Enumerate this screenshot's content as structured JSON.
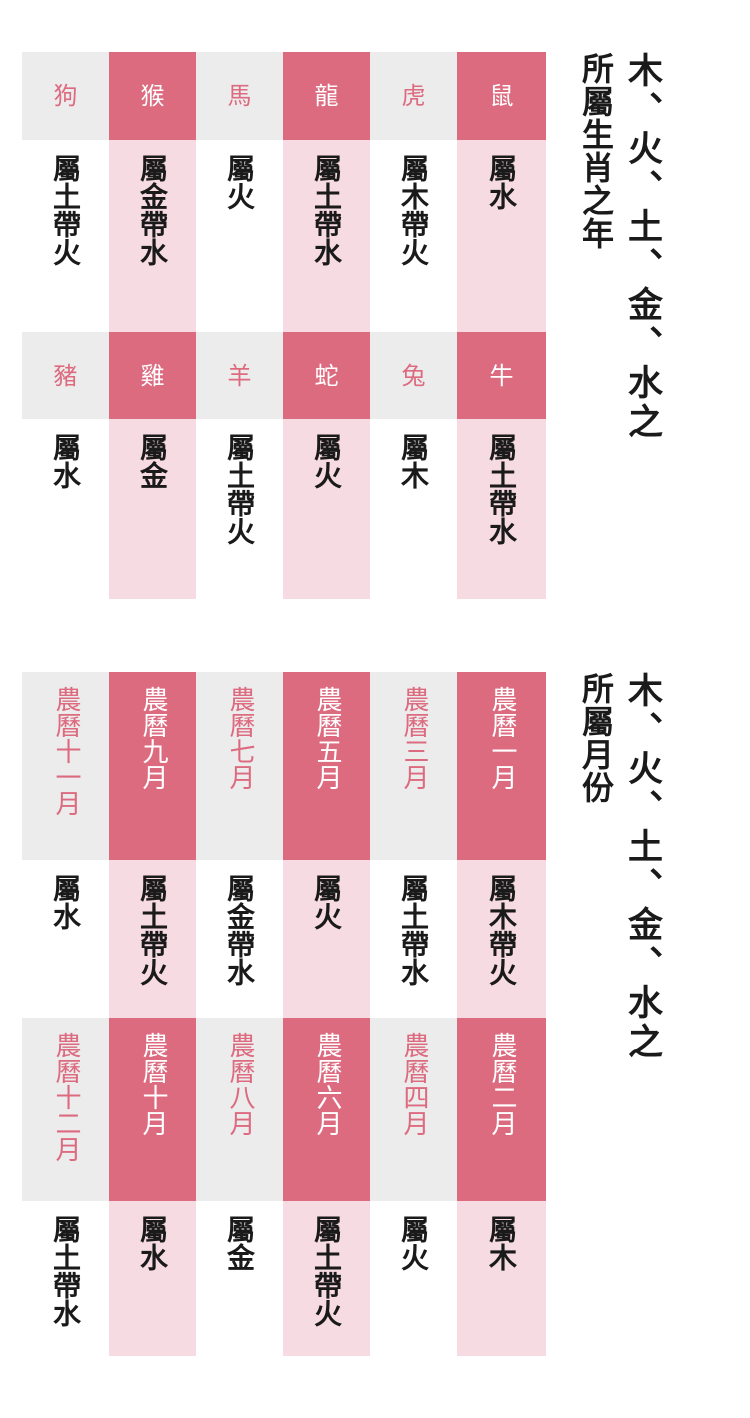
{
  "zodiac_section": {
    "title_main": "木、火、土、金、水之",
    "title_sub": "所屬生肖之年",
    "rows": [
      [
        {
          "head": "狗",
          "body": "屬土帶火"
        },
        {
          "head": "猴",
          "body": "屬金帶水"
        },
        {
          "head": "馬",
          "body": "屬火"
        },
        {
          "head": "龍",
          "body": "屬土帶水"
        },
        {
          "head": "虎",
          "body": "屬木帶火"
        },
        {
          "head": "鼠",
          "body": "屬水"
        }
      ],
      [
        {
          "head": "豬",
          "body": "屬水"
        },
        {
          "head": "雞",
          "body": "屬金"
        },
        {
          "head": "羊",
          "body": "屬土帶火"
        },
        {
          "head": "蛇",
          "body": "屬火"
        },
        {
          "head": "兔",
          "body": "屬木"
        },
        {
          "head": "牛",
          "body": "屬土帶水"
        }
      ]
    ]
  },
  "month_section": {
    "title_main": "木、火、土、金、水之",
    "title_sub": "所屬月份",
    "rows": [
      [
        {
          "head": "農曆十一月",
          "body": "屬水"
        },
        {
          "head": "農曆九月",
          "body": "屬土帶火"
        },
        {
          "head": "農曆七月",
          "body": "屬金帶水"
        },
        {
          "head": "農曆五月",
          "body": "屬火"
        },
        {
          "head": "農曆三月",
          "body": "屬土帶水"
        },
        {
          "head": "農曆一月",
          "body": "屬木帶火"
        }
      ],
      [
        {
          "head": "農曆十二月",
          "body": "屬土帶水"
        },
        {
          "head": "農曆十月",
          "body": "屬水"
        },
        {
          "head": "農曆八月",
          "body": "屬金"
        },
        {
          "head": "農曆六月",
          "body": "屬土帶火"
        },
        {
          "head": "農曆四月",
          "body": "屬火"
        },
        {
          "head": "農曆二月",
          "body": "屬木"
        }
      ]
    ]
  },
  "colors": {
    "accent_pink": "#dd6b80",
    "light_pink": "#f7dbe3",
    "light_gray": "#ececec"
  }
}
